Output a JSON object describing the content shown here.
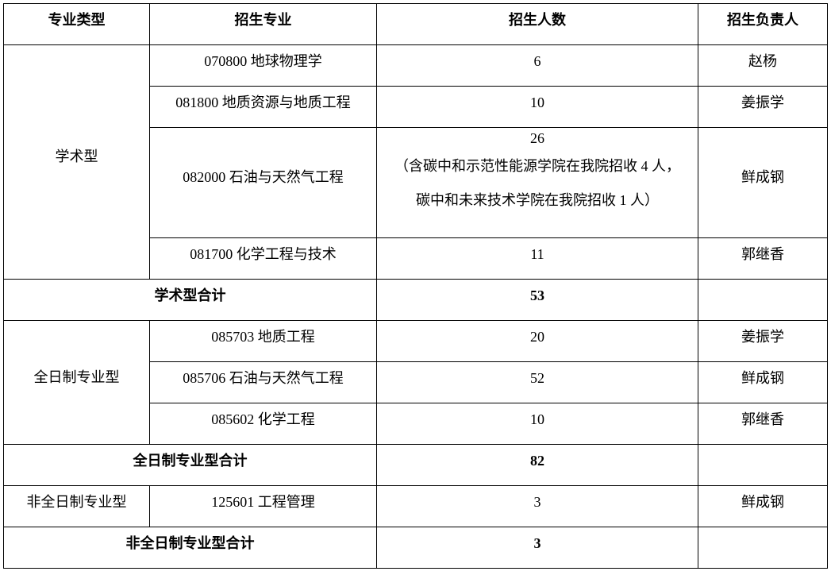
{
  "headers": [
    "专业类型",
    "招生专业",
    "招生人数",
    "招生负责人"
  ],
  "groups": [
    {
      "type": "学术型",
      "rows": [
        {
          "major": "070800 地球物理学",
          "count": "6",
          "person": "赵杨"
        },
        {
          "major": "081800 地质资源与地质工程",
          "count": "10",
          "person": "姜振学"
        },
        {
          "major": "082000 石油与天然气工程",
          "count": "26",
          "note1": "（含碳中和示范性能源学院在我院招收 4 人，",
          "note2": "碳中和未来技术学院在我院招收 1 人）",
          "person": "鲜成钢"
        },
        {
          "major": "081700 化学工程与技术",
          "count": "11",
          "person": "郭继香"
        }
      ],
      "total_label": "学术型合计",
      "total": "53"
    },
    {
      "type": "全日制专业型",
      "rows": [
        {
          "major": "085703 地质工程",
          "count": "20",
          "person": "姜振学"
        },
        {
          "major": "085706 石油与天然气工程",
          "count": "52",
          "person": "鲜成钢"
        },
        {
          "major": "085602 化学工程",
          "count": "10",
          "person": "郭继香"
        }
      ],
      "total_label": "全日制专业型合计",
      "total": "82"
    },
    {
      "type": "非全日制专业型",
      "rows": [
        {
          "major": "125601 工程管理",
          "count": "3",
          "person": "鲜成钢"
        }
      ],
      "total_label": "非全日制专业型合计",
      "total": "3"
    }
  ]
}
